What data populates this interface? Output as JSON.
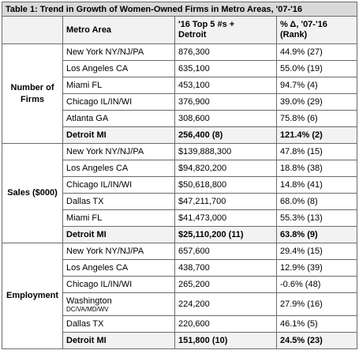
{
  "title": "Table 1: Trend in Growth of Women-Owned Firms in Metro Areas, '07-'16",
  "headers": {
    "area": "Metro Area",
    "value_line1": "'16 Top 5 #s +",
    "value_line2": "Detroit",
    "pct_line1": "% Δ, '07-'16",
    "pct_line2": "(Rank)"
  },
  "sections": [
    {
      "label_line1": "Number of",
      "label_line2": "Firms",
      "rows": [
        {
          "area": "New York NY/NJ/PA",
          "area_sub": "",
          "value": "876,300",
          "pct": "44.9% (27)"
        },
        {
          "area": "Los Angeles CA",
          "area_sub": "",
          "value": "635,100",
          "pct": "55.0% (19)"
        },
        {
          "area": "Miami FL",
          "area_sub": "",
          "value": "453,100",
          "pct": "94.7% (4)"
        },
        {
          "area": "Chicago IL/IN/WI",
          "area_sub": "",
          "value": "376,900",
          "pct": "39.0% (29)"
        },
        {
          "area": "Atlanta GA",
          "area_sub": "",
          "value": "308,600",
          "pct": "75.8% (6)"
        },
        {
          "area": "Detroit MI",
          "area_sub": "",
          "value": "256,400 (8)",
          "pct": "121.4% (2)"
        }
      ]
    },
    {
      "label_line1": "Sales ($000)",
      "label_line2": "",
      "rows": [
        {
          "area": "New York NY/NJ/PA",
          "area_sub": "",
          "value": "$139,888,300",
          "pct": "47.8% (15)"
        },
        {
          "area": "Los Angeles CA",
          "area_sub": "",
          "value": "$94,820,200",
          "pct": "18.8% (38)"
        },
        {
          "area": "Chicago IL/IN/WI",
          "area_sub": "",
          "value": "$50,618,800",
          "pct": "14.8% (41)"
        },
        {
          "area": "Dallas TX",
          "area_sub": "",
          "value": "$47,211,700",
          "pct": "68.0% (8)"
        },
        {
          "area": "Miami FL",
          "area_sub": "",
          "value": "$41,473,000",
          "pct": "55.3% (13)"
        },
        {
          "area": "Detroit MI",
          "area_sub": "",
          "value": "$25,110,200 (11)",
          "pct": "63.8% (9)"
        }
      ]
    },
    {
      "label_line1": "Employment",
      "label_line2": "",
      "rows": [
        {
          "area": "New York NY/NJ/PA",
          "area_sub": "",
          "value": "657,600",
          "pct": "29.4% (15)"
        },
        {
          "area": "Los Angeles CA",
          "area_sub": "",
          "value": "438,700",
          "pct": "12.9% (39)"
        },
        {
          "area": "Chicago IL/IN/WI",
          "area_sub": "",
          "value": "265,200",
          "pct": "-0.6% (48)"
        },
        {
          "area": "Washington",
          "area_sub": "DC/VA/MD/WV",
          "value": "224,200",
          "pct": "27.9% (16)"
        },
        {
          "area": "Dallas TX",
          "area_sub": "",
          "value": "220,600",
          "pct": "46.1% (5)"
        },
        {
          "area": "Detroit MI",
          "area_sub": "",
          "value": "151,800 (10)",
          "pct": "24.5% (23)"
        }
      ]
    }
  ]
}
